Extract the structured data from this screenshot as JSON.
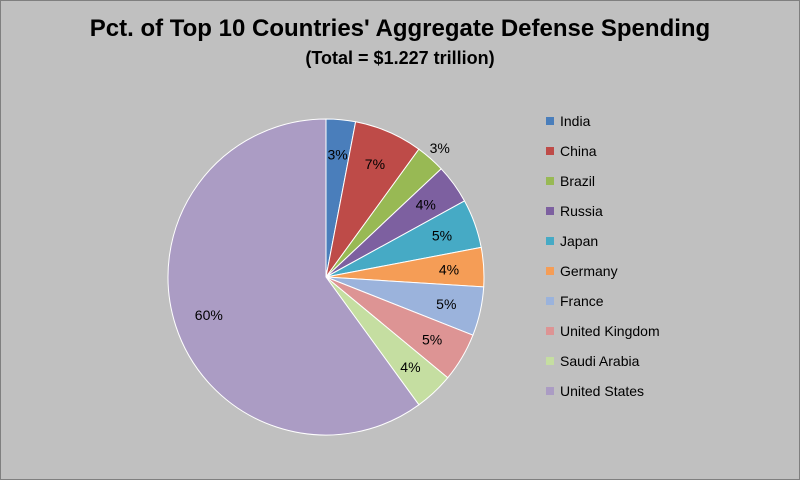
{
  "chart_data": {
    "type": "pie",
    "title": "Pct. of Top 10 Countries' Aggregate Defense Spending",
    "subtitle": "(Total = $1.227 trillion)",
    "legend_position": "right",
    "slices": [
      {
        "label": "India",
        "value": 3,
        "display": "3%",
        "color": "#4a7ebb"
      },
      {
        "label": "China",
        "value": 7,
        "display": "7%",
        "color": "#be4b48"
      },
      {
        "label": "Brazil",
        "value": 3,
        "display": "3%",
        "color": "#98b954"
      },
      {
        "label": "Russia",
        "value": 4,
        "display": "4%",
        "color": "#7d60a0"
      },
      {
        "label": "Japan",
        "value": 5,
        "display": "5%",
        "color": "#46aac5"
      },
      {
        "label": "Germany",
        "value": 4,
        "display": "4%",
        "color": "#f59d56"
      },
      {
        "label": "France",
        "value": 5,
        "display": "5%",
        "color": "#9bb3dc"
      },
      {
        "label": "United Kingdom",
        "value": 5,
        "display": "5%",
        "color": "#dd9494"
      },
      {
        "label": "Saudi Arabia",
        "value": 4,
        "display": "4%",
        "color": "#c5dea1"
      },
      {
        "label": "United States",
        "value": 60,
        "display": "60%",
        "color": "#ab9cc4"
      }
    ]
  }
}
